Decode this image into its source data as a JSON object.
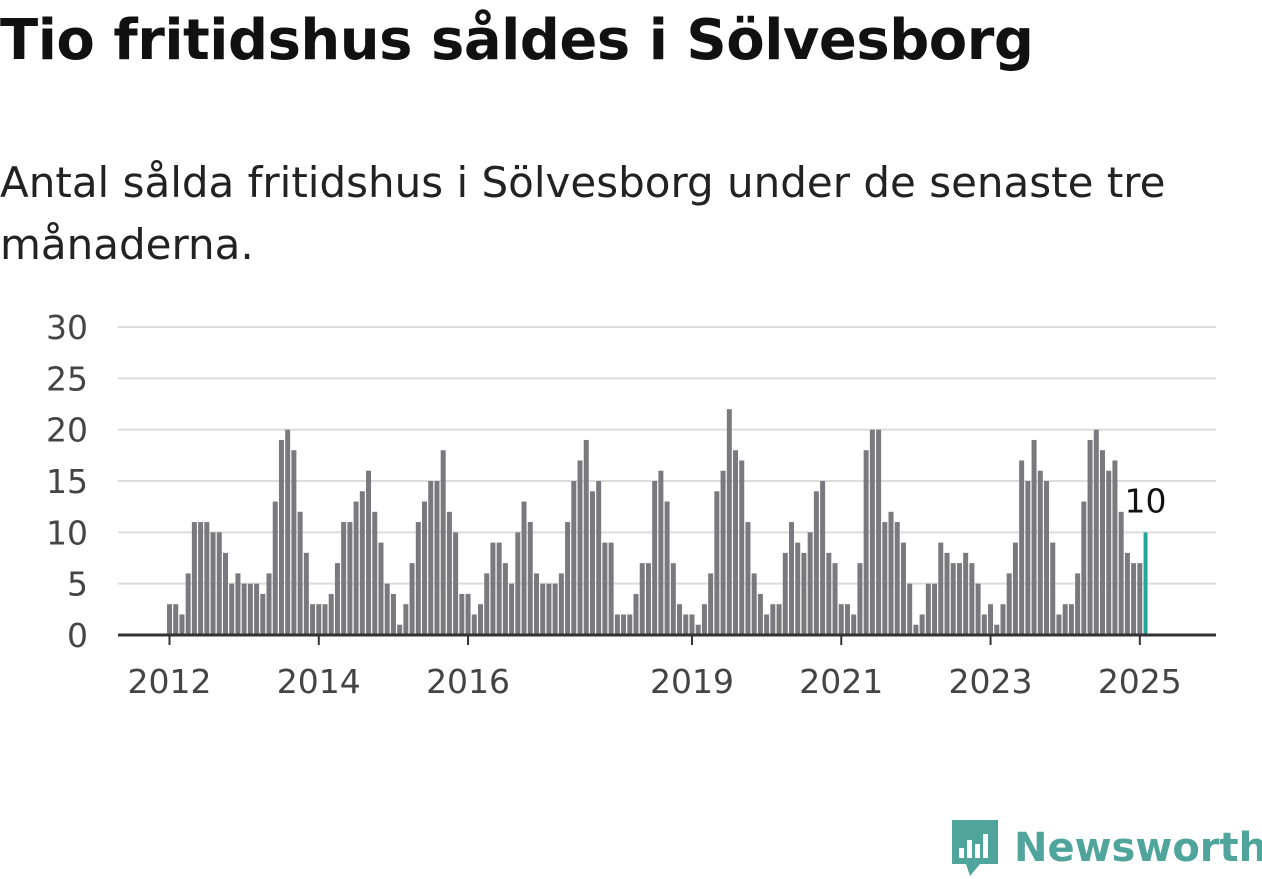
{
  "title": "Tio fritidshus såldes i Sölvesborg",
  "subtitle": "Antal sålda fritidshus i Sölvesborg under de senaste tre månaderna.",
  "brand": {
    "name": "Newsworthy",
    "color": "#4fa49c"
  },
  "colors": {
    "bar": "#7a797e",
    "highlight": "#26a69a",
    "grid": "#dcdcdc",
    "axis": "#333333"
  },
  "chart_data": {
    "type": "bar",
    "x_start": "2012-01",
    "x_interval": "month",
    "values": [
      3,
      3,
      2,
      6,
      11,
      11,
      11,
      10,
      10,
      8,
      5,
      6,
      5,
      5,
      5,
      4,
      6,
      13,
      19,
      20,
      18,
      12,
      8,
      3,
      3,
      3,
      4,
      7,
      11,
      11,
      13,
      14,
      16,
      12,
      9,
      5,
      4,
      1,
      3,
      7,
      11,
      13,
      15,
      15,
      18,
      12,
      10,
      4,
      4,
      2,
      3,
      6,
      9,
      9,
      7,
      5,
      10,
      13,
      11,
      6,
      5,
      5,
      5,
      6,
      11,
      15,
      17,
      19,
      14,
      15,
      9,
      9,
      2,
      2,
      2,
      4,
      7,
      7,
      15,
      16,
      13,
      7,
      3,
      2,
      2,
      1,
      3,
      6,
      14,
      16,
      22,
      18,
      17,
      11,
      6,
      4,
      2,
      3,
      3,
      8,
      11,
      9,
      8,
      10,
      14,
      15,
      8,
      7,
      3,
      3,
      2,
      7,
      18,
      20,
      20,
      11,
      12,
      11,
      9,
      5,
      1,
      2,
      5,
      5,
      9,
      8,
      7,
      7,
      8,
      7,
      5,
      2,
      3,
      1,
      3,
      6,
      9,
      17,
      15,
      19,
      16,
      15,
      9,
      2,
      3,
      3,
      6,
      13,
      19,
      20,
      18,
      16,
      17,
      12,
      8,
      7,
      7,
      10
    ],
    "ylim": [
      0,
      30
    ],
    "y_ticks": [
      "0",
      "5",
      "10",
      "15",
      "20",
      "25",
      "30"
    ],
    "x_ticks": [
      "2012",
      "2014",
      "2016",
      "2019",
      "2021",
      "2023",
      "2025"
    ],
    "annotation": "10",
    "highlight": "last",
    "grid": true,
    "xlabel": "",
    "ylabel": ""
  }
}
